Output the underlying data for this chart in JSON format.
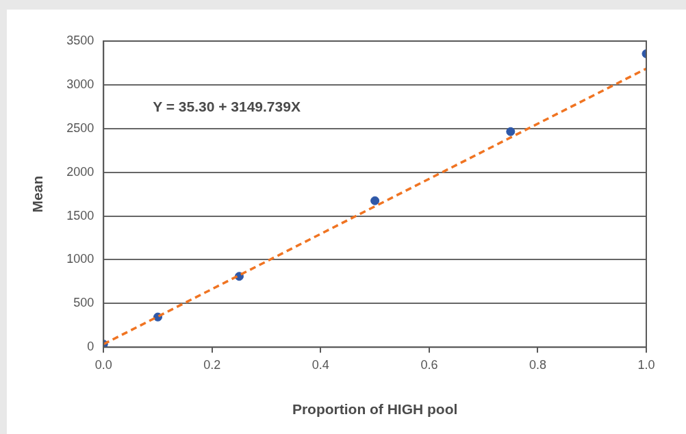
{
  "chart_data": {
    "type": "scatter",
    "xlabel": "Proportion of HIGH pool",
    "ylabel": "Mean",
    "annotations": [
      "Y = 35.30 + 3149.739X"
    ],
    "series": [
      {
        "type": "scatter",
        "color": "#2e58a8",
        "marker": "circle",
        "x": [
          0,
          0.1,
          0.25,
          0.5,
          0.75,
          1.0
        ],
        "values": [
          35,
          345,
          810,
          1675,
          2465,
          3355
        ]
      },
      {
        "type": "line",
        "color": "#f07422",
        "line_style": "dashed",
        "marker": "none",
        "x": [
          0,
          1.0
        ],
        "values": [
          35,
          3185
        ]
      }
    ],
    "xlim": [
      0,
      1.0
    ],
    "xticks": [
      {
        "value": 0,
        "label": "0.0"
      },
      0.2,
      0.4,
      0.6,
      0.8,
      {
        "value": 1.0,
        "label": "1.0"
      }
    ],
    "ylim": [
      0,
      3500
    ],
    "yticks": [
      0,
      500,
      1000,
      1500,
      2000,
      2500,
      3000,
      3500
    ],
    "grid": "y",
    "legend": false
  }
}
